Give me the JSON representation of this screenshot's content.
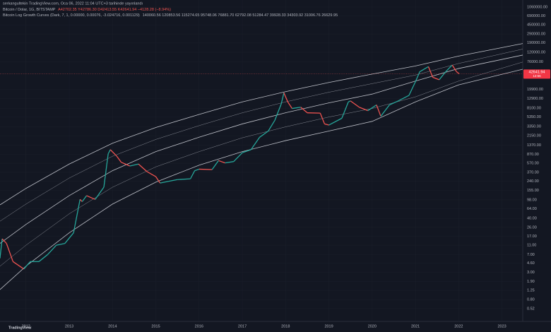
{
  "header": {
    "published": "serkangultekin TradingView.com, Oca 06, 2022 11:04 UTC+3 tarihinde yayınlandı",
    "symbol": "Bitcoin / Dolar, 1G, BITSTAMP",
    "ohlc": "A42702.35 Y42786.30 D42413.55 K42641.94 −4128.28 (−8.94%)",
    "indicator": "Bitcoin Log Growth Curves (Dark, 7, 1, 0.00000, 0.00076, -3.024716, 0.001129)",
    "indicator_values": "140060.56  120853.56  115274.65  95748.06  76881.70  62792.08  51284.47  39928.33  34303.92  31006.76  26629.95",
    "brand": "TradingView"
  },
  "chart_data": {
    "type": "line",
    "log_scale": true,
    "grid": true,
    "up_color": "#26a69a",
    "down_color": "#ef5350",
    "curve_color": "#d1d4dc",
    "x": [
      2011.4,
      2011.45,
      2011.55,
      2011.7,
      2011.95,
      2012.1,
      2012.3,
      2012.5,
      2012.7,
      2012.9,
      2013.1,
      2013.25,
      2013.3,
      2013.4,
      2013.6,
      2013.8,
      2013.9,
      2013.95,
      2014.1,
      2014.2,
      2014.4,
      2014.6,
      2014.8,
      2015.0,
      2015.1,
      2015.3,
      2015.5,
      2015.8,
      2015.9,
      2016.0,
      2016.3,
      2016.45,
      2016.6,
      2016.8,
      2017.0,
      2017.2,
      2017.4,
      2017.6,
      2017.75,
      2017.9,
      2017.96,
      2018.05,
      2018.15,
      2018.35,
      2018.5,
      2018.8,
      2018.9,
      2019.0,
      2019.3,
      2019.45,
      2019.5,
      2019.7,
      2019.9,
      2020.1,
      2020.2,
      2020.4,
      2020.6,
      2020.85,
      2021.0,
      2021.1,
      2021.3,
      2021.4,
      2021.55,
      2021.7,
      2021.85,
      2021.95,
      2022.01
    ],
    "series": [
      {
        "values": [
          6,
          15,
          12,
          5,
          3.5,
          5,
          5,
          7,
          11,
          12,
          20,
          100,
          90,
          120,
          100,
          180,
          900,
          1100,
          800,
          600,
          500,
          550,
          380,
          300,
          220,
          240,
          260,
          270,
          400,
          430,
          420,
          650,
          580,
          620,
          950,
          1100,
          2000,
          2700,
          4500,
          10000,
          17000,
          11000,
          8000,
          8500,
          6500,
          6400,
          3800,
          3600,
          5000,
          11000,
          11500,
          8500,
          7200,
          9500,
          5500,
          9500,
          11500,
          15000,
          29000,
          47000,
          60000,
          36000,
          32000,
          47000,
          65000,
          47000,
          42641.94
        ]
      }
    ],
    "price_label_time": "12:56",
    "curve_x": [
      2011.4,
      2012,
      2013,
      2014,
      2015,
      2016,
      2017,
      2018,
      2019,
      2020,
      2021,
      2022,
      2023.48
    ],
    "curves": [
      {
        "values": [
          77,
          170,
          550,
          1500,
          3200,
          6000,
          11000,
          18000,
          28000,
          42000,
          62000,
          100000,
          183000
        ]
      },
      {
        "values": [
          35,
          80,
          280,
          800,
          1800,
          3500,
          6500,
          11000,
          17500,
          26500,
          40000,
          70000,
          140000
        ]
      },
      {
        "values": [
          12,
          30,
          120,
          400,
          1000,
          2000,
          3800,
          6500,
          10500,
          16000,
          30000,
          55000,
          105000
        ]
      },
      {
        "values": [
          4,
          11,
          50,
          180,
          480,
          1000,
          1950,
          3300,
          5300,
          8000,
          14000,
          30000,
          75000
        ]
      },
      {
        "values": [
          1.3,
          4,
          20,
          80,
          230,
          520,
          1000,
          1700,
          2700,
          4300,
          11000,
          25000,
          53000
        ]
      }
    ],
    "xlim": [
      2011.4,
      2023.48
    ],
    "xticks": [
      2012,
      2013,
      2014,
      2015,
      2016,
      2017,
      2018,
      2019,
      2020,
      2021,
      2022,
      2023
    ],
    "ylim": [
      0.28,
      1490000
    ],
    "yticks": [
      {
        "value": 1060000,
        "label": "1060000.00"
      },
      {
        "value": 690000,
        "label": "690000.00"
      },
      {
        "value": 450000,
        "label": "450000.00"
      },
      {
        "value": 290000,
        "label": "290000.00"
      },
      {
        "value": 190000,
        "label": "190000.00"
      },
      {
        "value": 120000,
        "label": "120000.00"
      },
      {
        "value": 76000,
        "label": "76000.00"
      },
      {
        "value": 19900,
        "label": "19900.00"
      },
      {
        "value": 12900,
        "label": "12900.00"
      },
      {
        "value": 8100,
        "label": "8100.00"
      },
      {
        "value": 5350,
        "label": "5350.00"
      },
      {
        "value": 3350,
        "label": "3350.00"
      },
      {
        "value": 2150,
        "label": "2150.00"
      },
      {
        "value": 1370,
        "label": "1370.00"
      },
      {
        "value": 870,
        "label": "870.00"
      },
      {
        "value": 570,
        "label": "570.00"
      },
      {
        "value": 370,
        "label": "370.00"
      },
      {
        "value": 240,
        "label": "240.00"
      },
      {
        "value": 155,
        "label": "155.00"
      },
      {
        "value": 98,
        "label": "98.00"
      },
      {
        "value": 64,
        "label": "64.00"
      },
      {
        "value": 40,
        "label": "40.00"
      },
      {
        "value": 26,
        "label": "26.00"
      },
      {
        "value": 17,
        "label": "17.00"
      },
      {
        "value": 11,
        "label": "11.00"
      },
      {
        "value": 7,
        "label": "7.00"
      },
      {
        "value": 4.6,
        "label": "4.60"
      },
      {
        "value": 3,
        "label": "3.00"
      },
      {
        "value": 1.9,
        "label": "1.90"
      },
      {
        "value": 1.25,
        "label": "1.25"
      },
      {
        "value": 0.8,
        "label": "0.80"
      },
      {
        "value": 0.52,
        "label": "0.52"
      }
    ]
  }
}
